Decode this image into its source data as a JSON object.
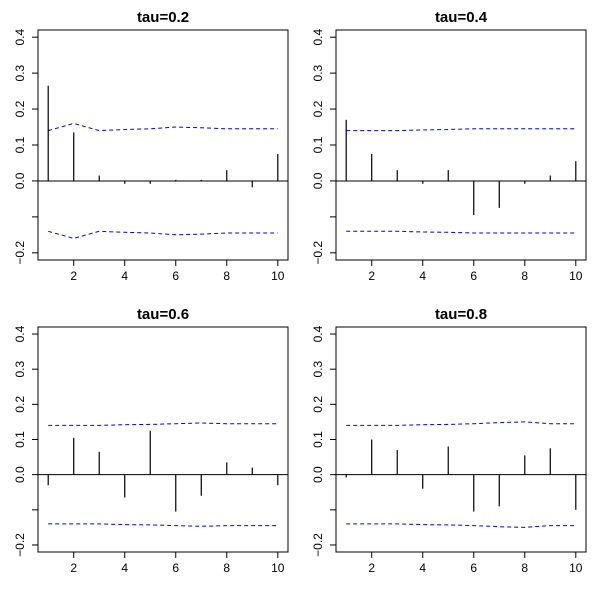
{
  "chart_data": [
    {
      "type": "bar",
      "title": "tau=0.2",
      "x": [
        1,
        2,
        3,
        4,
        5,
        6,
        7,
        8,
        9,
        10
      ],
      "values": [
        0.265,
        0.135,
        0.015,
        -0.008,
        -0.008,
        0.003,
        0.003,
        0.03,
        -0.018,
        0.075
      ],
      "band": [
        0.14,
        0.16,
        0.14,
        0.143,
        0.145,
        0.15,
        0.148,
        0.145,
        0.145,
        0.145
      ],
      "xlim": [
        0.6,
        10.4
      ],
      "ylim": [
        -0.22,
        0.42
      ],
      "xticks": [
        2,
        4,
        6,
        8,
        10
      ],
      "yticks": [
        -0.2,
        -0.1,
        0.0,
        0.1,
        0.2,
        0.3,
        0.4
      ],
      "xtick_labels": [
        "2",
        "4",
        "6",
        "8",
        "10"
      ],
      "ytick_labels": [
        "−0.2",
        "",
        "0.0",
        "0.1",
        "0.2",
        "0.3",
        "0.4"
      ],
      "xlabel": "",
      "ylabel": ""
    },
    {
      "type": "bar",
      "title": "tau=0.4",
      "x": [
        1,
        2,
        3,
        4,
        5,
        6,
        7,
        8,
        9,
        10
      ],
      "values": [
        0.17,
        0.075,
        0.03,
        -0.008,
        0.03,
        -0.095,
        -0.075,
        -0.008,
        0.015,
        0.055
      ],
      "band": [
        0.14,
        0.14,
        0.14,
        0.142,
        0.143,
        0.145,
        0.145,
        0.145,
        0.145,
        0.145
      ],
      "xlim": [
        0.6,
        10.4
      ],
      "ylim": [
        -0.22,
        0.42
      ],
      "xticks": [
        2,
        4,
        6,
        8,
        10
      ],
      "yticks": [
        -0.2,
        -0.1,
        0.0,
        0.1,
        0.2,
        0.3,
        0.4
      ],
      "xtick_labels": [
        "2",
        "4",
        "6",
        "8",
        "10"
      ],
      "ytick_labels": [
        "−0.2",
        "",
        "0.0",
        "0.1",
        "0.2",
        "0.3",
        "0.4"
      ],
      "xlabel": "",
      "ylabel": ""
    },
    {
      "type": "bar",
      "title": "tau=0.6",
      "x": [
        1,
        2,
        3,
        4,
        5,
        6,
        7,
        8,
        9,
        10
      ],
      "values": [
        -0.03,
        0.105,
        0.065,
        -0.065,
        0.125,
        -0.105,
        -0.06,
        0.035,
        0.02,
        -0.03
      ],
      "band": [
        0.14,
        0.14,
        0.14,
        0.142,
        0.143,
        0.145,
        0.147,
        0.145,
        0.145,
        0.145
      ],
      "xlim": [
        0.6,
        10.4
      ],
      "ylim": [
        -0.22,
        0.42
      ],
      "xticks": [
        2,
        4,
        6,
        8,
        10
      ],
      "yticks": [
        -0.2,
        -0.1,
        0.0,
        0.1,
        0.2,
        0.3,
        0.4
      ],
      "xtick_labels": [
        "2",
        "4",
        "6",
        "8",
        "10"
      ],
      "ytick_labels": [
        "−0.2",
        "",
        "0.0",
        "0.1",
        "0.2",
        "0.3",
        "0.4"
      ],
      "xlabel": "",
      "ylabel": ""
    },
    {
      "type": "bar",
      "title": "tau=0.8",
      "x": [
        1,
        2,
        3,
        4,
        5,
        6,
        7,
        8,
        9,
        10
      ],
      "values": [
        -0.008,
        0.1,
        0.07,
        -0.04,
        0.08,
        -0.105,
        -0.09,
        0.055,
        0.075,
        -0.1
      ],
      "band": [
        0.14,
        0.14,
        0.14,
        0.142,
        0.143,
        0.145,
        0.148,
        0.15,
        0.145,
        0.145
      ],
      "xlim": [
        0.6,
        10.4
      ],
      "ylim": [
        -0.22,
        0.42
      ],
      "xticks": [
        2,
        4,
        6,
        8,
        10
      ],
      "yticks": [
        -0.2,
        -0.1,
        0.0,
        0.1,
        0.2,
        0.3,
        0.4
      ],
      "xtick_labels": [
        "2",
        "4",
        "6",
        "8",
        "10"
      ],
      "ytick_labels": [
        "−0.2",
        "",
        "0.0",
        "0.1",
        "0.2",
        "0.3",
        "0.4"
      ],
      "xlabel": "",
      "ylabel": ""
    }
  ],
  "colors": {
    "bars": "#000000",
    "band": "#0000ff",
    "frame": "#000000",
    "zero_line": "#000000"
  }
}
